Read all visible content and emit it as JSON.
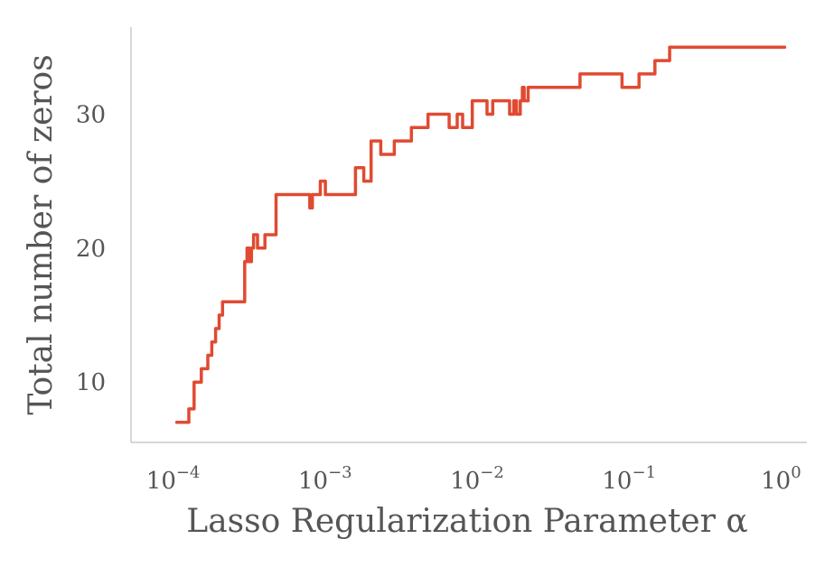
{
  "chart_data": {
    "type": "line",
    "title": "",
    "xlabel": "Lasso Regularization Parameter α",
    "ylabel": "Total number of zeros",
    "x_scale": "log",
    "xlim": [
      5e-05,
      1.4
    ],
    "ylim": [
      5.5,
      36.5
    ],
    "x_ticks": [
      {
        "value": 0.0001,
        "base": "10",
        "exp": "−4"
      },
      {
        "value": 0.001,
        "base": "10",
        "exp": "−3"
      },
      {
        "value": 0.01,
        "base": "10",
        "exp": "−2"
      },
      {
        "value": 0.1,
        "base": "10",
        "exp": "−1"
      },
      {
        "value": 1,
        "base": "10",
        "exp": "0"
      }
    ],
    "y_ticks": [
      {
        "value": 10,
        "label": "10"
      },
      {
        "value": 20,
        "label": "20"
      },
      {
        "value": 30,
        "label": "30"
      }
    ],
    "grid": false,
    "legend": "none",
    "colors": {
      "series": "#e04a32",
      "axis": "#bdbdbd",
      "text": "#555555"
    },
    "series": [
      {
        "step": true,
        "x": [
          0.0001,
          0.00012,
          0.00013,
          0.00014,
          0.000145,
          0.00015,
          0.00016,
          0.00017,
          0.000175,
          0.00018,
          0.00019,
          0.0002,
          0.00021,
          0.00028,
          0.00029,
          0.0003,
          0.00031,
          0.00032,
          0.00034,
          0.00038,
          0.00045,
          0.0005,
          0.00075,
          0.00078,
          0.00082,
          0.00088,
          0.00095,
          0.0011,
          0.0015,
          0.0016,
          0.0017,
          0.0019,
          0.0022,
          0.0027,
          0.0035,
          0.0045,
          0.0062,
          0.007,
          0.0076,
          0.0088,
          0.011,
          0.012,
          0.0135,
          0.0155,
          0.0165,
          0.0172,
          0.0182,
          0.0188,
          0.0193,
          0.0205,
          0.045,
          0.085,
          0.11,
          0.14,
          0.165,
          0.175,
          1.0
        ],
        "y": [
          7,
          8,
          10,
          10,
          11,
          11,
          12,
          13,
          13,
          14,
          15,
          16,
          16,
          19,
          20,
          19,
          20,
          21,
          20,
          21,
          24,
          24,
          23,
          24,
          24,
          25,
          24,
          24,
          26,
          26,
          25,
          28,
          27,
          28,
          29,
          30,
          29,
          30,
          29,
          31,
          30,
          31,
          31,
          30,
          31,
          30,
          31,
          32,
          31,
          32,
          33,
          32,
          33,
          34,
          34,
          35,
          35
        ]
      }
    ]
  }
}
